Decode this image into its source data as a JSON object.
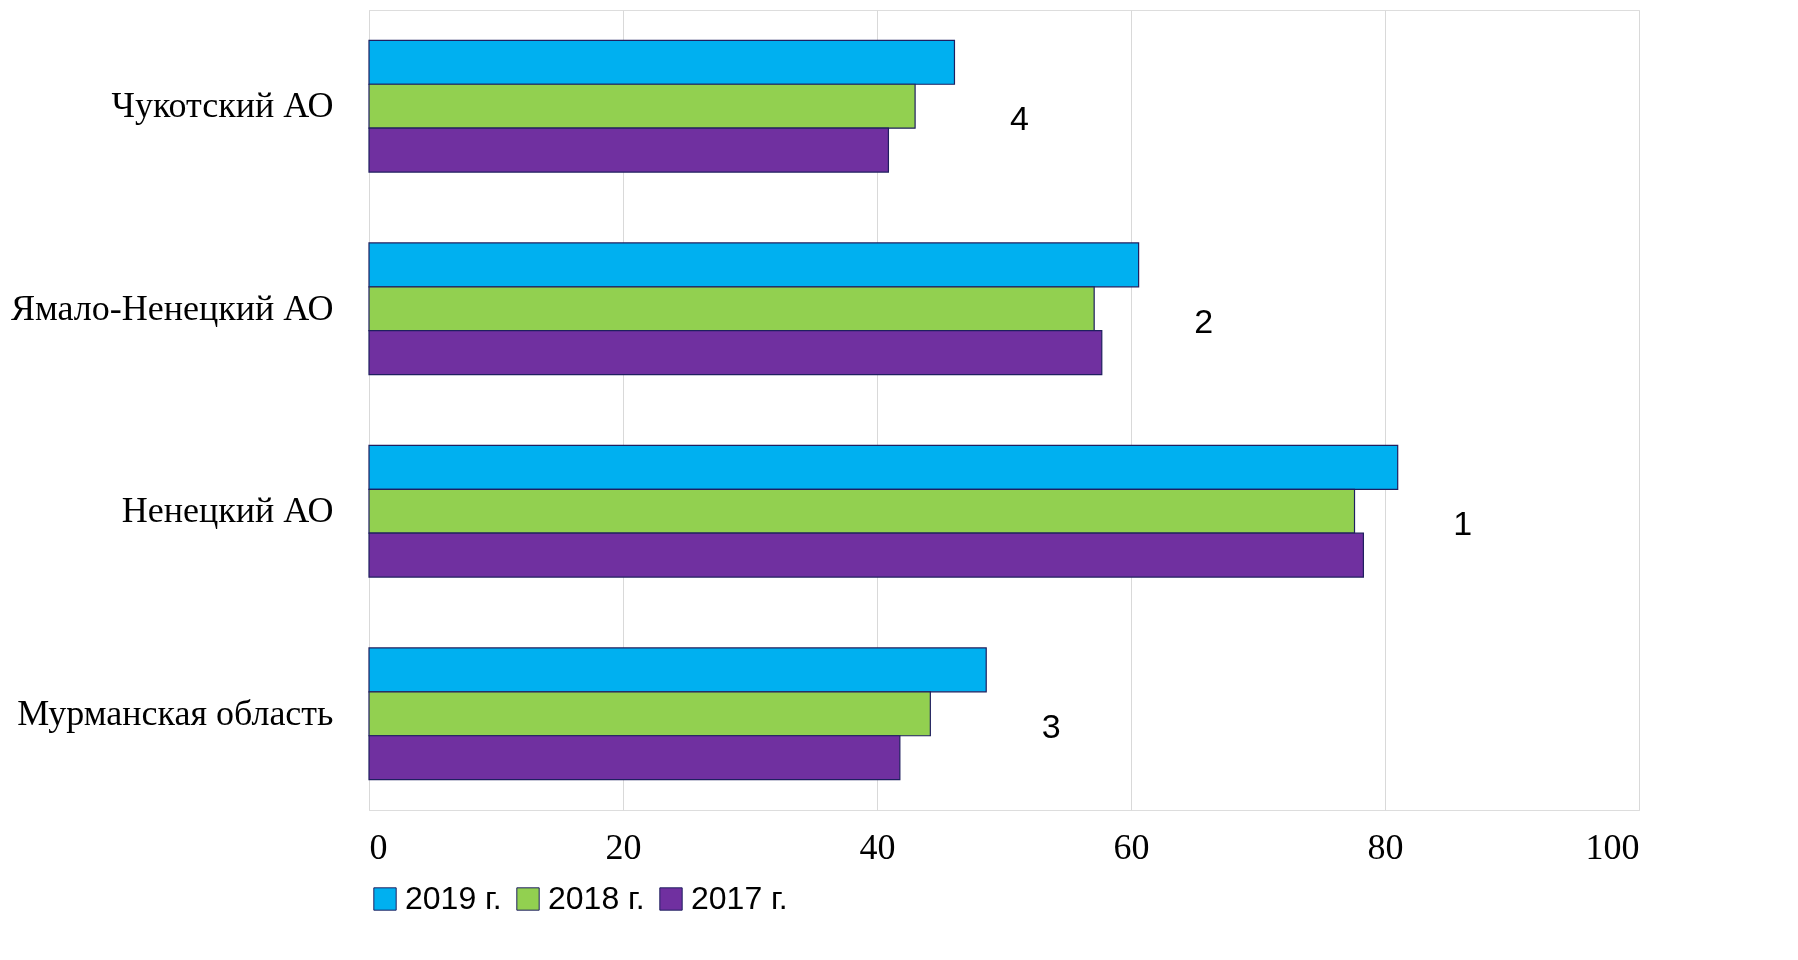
{
  "chart_data": {
    "type": "bar",
    "orientation": "horizontal",
    "categories": [
      "Чукотский АО",
      "Ямало-Ненецкий АО",
      "Ненецкий АО",
      "Мурманская область"
    ],
    "series": [
      {
        "name": "2019 г.",
        "color": "#00b0f0",
        "values": [
          46.1,
          60.6,
          81.0,
          48.6
        ]
      },
      {
        "name": "2018 г.",
        "color": "#92d050",
        "values": [
          43.0,
          57.1,
          77.6,
          44.2
        ]
      },
      {
        "name": "2017 г.",
        "color": "#7030a0",
        "values": [
          40.9,
          57.7,
          78.3,
          41.8
        ]
      }
    ],
    "xlim": [
      0,
      100
    ],
    "xticks": [
      0,
      20,
      40,
      60,
      80,
      100
    ],
    "grid": "x",
    "legend": "bottom",
    "annotations": [
      "4",
      "2",
      "1",
      "3"
    ]
  }
}
